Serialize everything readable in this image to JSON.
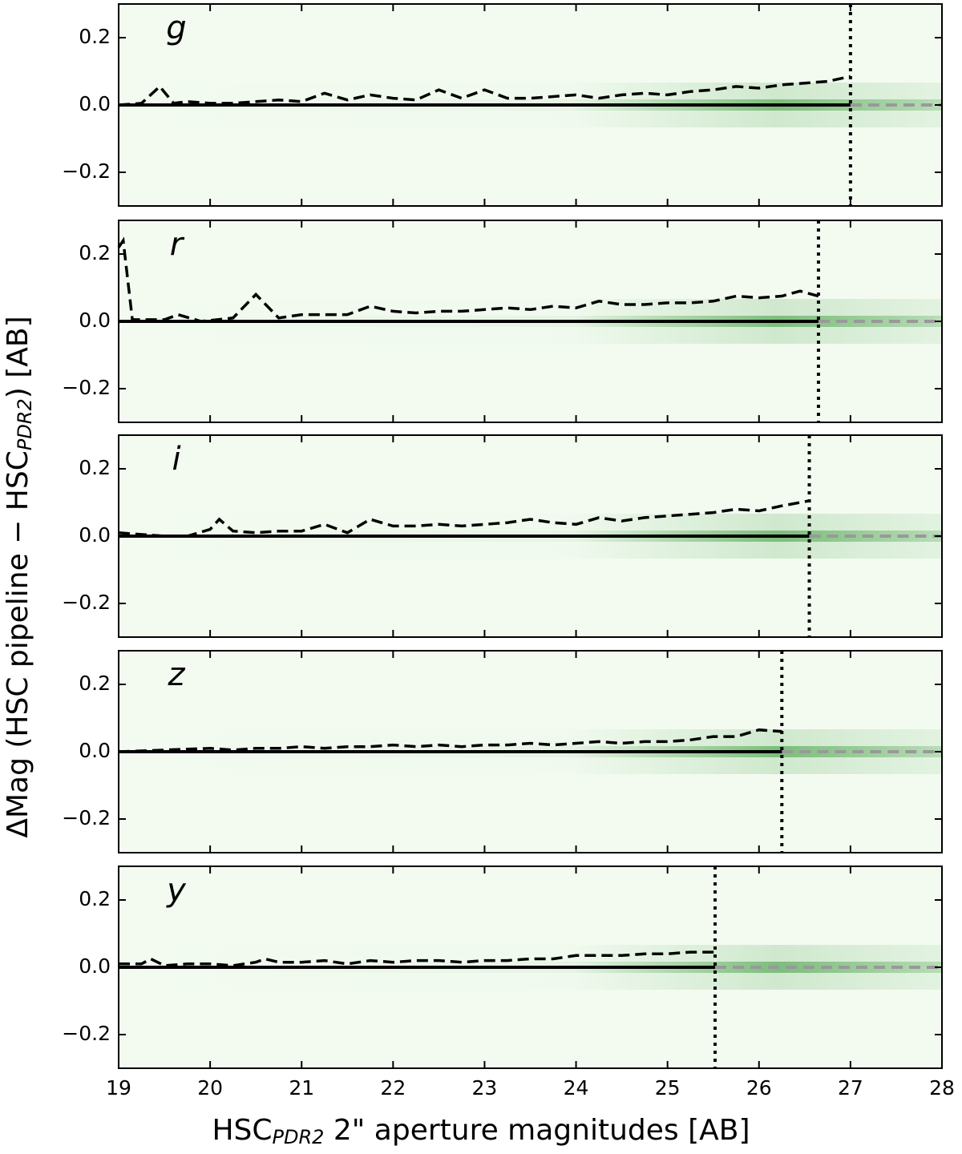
{
  "figure": {
    "xlabel": [
      "HSC",
      "PDR2",
      " 2\" aperture magnitudes [AB]"
    ],
    "ylabel": [
      "ΔMag (HSC pipeline − HSC",
      "PDR2",
      ") [AB]"
    ]
  },
  "chart_data": [
    {
      "type": "line",
      "label": "g",
      "cutoff": 27.0,
      "xlim": [
        19,
        28
      ],
      "xticks": [
        19,
        20,
        21,
        22,
        23,
        24,
        25,
        26,
        27,
        28
      ],
      "ylim": [
        -0.3,
        0.3
      ],
      "yticks": [
        {
          "value": -0.2,
          "label": "−0.2"
        },
        {
          "value": 0,
          "label": "0.0"
        },
        0.2
      ],
      "series": [
        {
          "style": "dashed",
          "color": "#000000",
          "x": [
            19.0,
            19.25,
            19.45,
            19.6,
            19.75,
            20.0,
            20.25,
            20.5,
            20.75,
            21.0,
            21.25,
            21.5,
            21.75,
            22.0,
            22.25,
            22.5,
            22.75,
            23.0,
            23.25,
            23.5,
            23.75,
            24.0,
            24.25,
            24.5,
            24.75,
            25.0,
            25.25,
            25.5,
            25.75,
            26.0,
            26.25,
            26.5,
            26.75,
            27.0
          ],
          "values": [
            0.0,
            0.005,
            0.055,
            0.005,
            0.01,
            0.005,
            0.005,
            0.01,
            0.015,
            0.01,
            0.035,
            0.015,
            0.03,
            0.02,
            0.015,
            0.045,
            0.02,
            0.045,
            0.02,
            0.02,
            0.025,
            0.03,
            0.02,
            0.03,
            0.035,
            0.03,
            0.04,
            0.045,
            0.055,
            0.05,
            0.06,
            0.065,
            0.07,
            0.085
          ]
        },
        {
          "style": "solid",
          "color": "#000000",
          "x": [
            19.0,
            27.0
          ],
          "values": [
            0,
            0
          ]
        }
      ]
    },
    {
      "type": "line",
      "label": "r",
      "cutoff": 26.65,
      "xlim": [
        19,
        28
      ],
      "xticks": [
        19,
        20,
        21,
        22,
        23,
        24,
        25,
        26,
        27,
        28
      ],
      "ylim": [
        -0.3,
        0.3
      ],
      "yticks": [
        {
          "value": -0.2,
          "label": "−0.2"
        },
        {
          "value": 0,
          "label": "0.0"
        },
        0.2
      ],
      "series": [
        {
          "style": "dashed",
          "color": "#000000",
          "x": [
            19.0,
            19.05,
            19.15,
            19.5,
            19.65,
            19.9,
            20.25,
            20.5,
            20.75,
            21.0,
            21.25,
            21.5,
            21.75,
            22.0,
            22.25,
            22.5,
            22.75,
            23.0,
            23.25,
            23.5,
            23.75,
            24.0,
            24.25,
            24.5,
            24.75,
            25.0,
            25.25,
            25.5,
            25.75,
            26.0,
            26.25,
            26.45,
            26.65
          ],
          "values": [
            0.22,
            0.24,
            0.005,
            0.005,
            0.02,
            0.0,
            0.01,
            0.08,
            0.01,
            0.02,
            0.02,
            0.02,
            0.045,
            0.03,
            0.025,
            0.03,
            0.03,
            0.035,
            0.04,
            0.035,
            0.045,
            0.04,
            0.06,
            0.05,
            0.05,
            0.055,
            0.055,
            0.06,
            0.075,
            0.07,
            0.075,
            0.09,
            0.075
          ]
        },
        {
          "style": "solid",
          "color": "#000000",
          "x": [
            19.0,
            26.65
          ],
          "values": [
            0,
            0
          ]
        }
      ]
    },
    {
      "type": "line",
      "label": "i",
      "cutoff": 26.55,
      "xlim": [
        19,
        28
      ],
      "xticks": [
        19,
        20,
        21,
        22,
        23,
        24,
        25,
        26,
        27,
        28
      ],
      "ylim": [
        -0.3,
        0.3
      ],
      "yticks": [
        {
          "value": -0.2,
          "label": "−0.2"
        },
        {
          "value": 0,
          "label": "0.0"
        },
        0.2
      ],
      "series": [
        {
          "style": "dashed",
          "color": "#000000",
          "x": [
            19.0,
            19.5,
            19.75,
            20.0,
            20.1,
            20.25,
            20.5,
            20.75,
            21.0,
            21.25,
            21.5,
            21.75,
            22.0,
            22.25,
            22.5,
            22.75,
            23.0,
            23.25,
            23.5,
            23.75,
            24.0,
            24.25,
            24.5,
            24.75,
            25.0,
            25.25,
            25.5,
            25.75,
            26.0,
            26.25,
            26.55
          ],
          "values": [
            0.01,
            0.0,
            0.0,
            0.02,
            0.05,
            0.015,
            0.01,
            0.015,
            0.015,
            0.035,
            0.01,
            0.05,
            0.03,
            0.03,
            0.035,
            0.03,
            0.035,
            0.04,
            0.05,
            0.04,
            0.035,
            0.055,
            0.045,
            0.055,
            0.06,
            0.065,
            0.07,
            0.08,
            0.075,
            0.09,
            0.105
          ]
        },
        {
          "style": "solid",
          "color": "#000000",
          "x": [
            19.0,
            26.55
          ],
          "values": [
            0,
            0
          ]
        }
      ]
    },
    {
      "type": "line",
      "label": "z",
      "cutoff": 26.25,
      "xlim": [
        19,
        28
      ],
      "xticks": [
        19,
        20,
        21,
        22,
        23,
        24,
        25,
        26,
        27,
        28
      ],
      "ylim": [
        -0.3,
        0.3
      ],
      "yticks": [
        {
          "value": -0.2,
          "label": "−0.2"
        },
        {
          "value": 0,
          "label": "0.0"
        },
        0.2
      ],
      "series": [
        {
          "style": "dashed",
          "color": "#000000",
          "x": [
            19.0,
            19.5,
            20.0,
            20.25,
            20.5,
            20.75,
            21.0,
            21.25,
            21.5,
            21.75,
            22.0,
            22.25,
            22.5,
            22.75,
            23.0,
            23.25,
            23.5,
            23.75,
            24.0,
            24.25,
            24.5,
            24.75,
            25.0,
            25.25,
            25.5,
            25.75,
            26.0,
            26.25
          ],
          "values": [
            0.0,
            0.005,
            0.01,
            0.005,
            0.01,
            0.01,
            0.015,
            0.01,
            0.015,
            0.015,
            0.02,
            0.015,
            0.02,
            0.015,
            0.02,
            0.02,
            0.025,
            0.02,
            0.025,
            0.03,
            0.025,
            0.03,
            0.03,
            0.035,
            0.045,
            0.045,
            0.065,
            0.06
          ]
        },
        {
          "style": "solid",
          "color": "#000000",
          "x": [
            19.0,
            26.25
          ],
          "values": [
            0,
            0
          ]
        }
      ]
    },
    {
      "type": "line",
      "label": "y",
      "cutoff": 25.52,
      "xlim": [
        19,
        28
      ],
      "xticks": [
        19,
        20,
        21,
        22,
        23,
        24,
        25,
        26,
        27,
        28
      ],
      "ylim": [
        -0.3,
        0.3
      ],
      "yticks": [
        {
          "value": -0.2,
          "label": "−0.2"
        },
        {
          "value": 0,
          "label": "0.0"
        },
        0.2
      ],
      "series": [
        {
          "style": "dashed",
          "color": "#000000",
          "x": [
            19.0,
            19.25,
            19.35,
            19.5,
            19.75,
            20.0,
            20.25,
            20.5,
            20.6,
            20.75,
            21.0,
            21.25,
            21.5,
            21.75,
            22.0,
            22.25,
            22.5,
            22.75,
            23.0,
            23.25,
            23.5,
            23.75,
            24.0,
            24.25,
            24.5,
            24.75,
            25.0,
            25.25,
            25.52
          ],
          "values": [
            0.01,
            0.01,
            0.025,
            0.005,
            0.01,
            0.01,
            0.005,
            0.015,
            0.025,
            0.015,
            0.015,
            0.02,
            0.01,
            0.02,
            0.015,
            0.02,
            0.02,
            0.015,
            0.02,
            0.02,
            0.025,
            0.025,
            0.035,
            0.035,
            0.035,
            0.04,
            0.04,
            0.045,
            0.045
          ]
        },
        {
          "style": "solid",
          "color": "#000000",
          "x": [
            19.0,
            25.52
          ],
          "values": [
            0,
            0
          ]
        }
      ]
    }
  ]
}
